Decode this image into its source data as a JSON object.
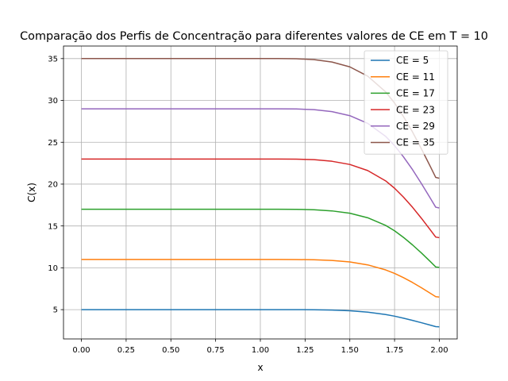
{
  "chart_data": {
    "type": "line",
    "title": "Comparação dos Perfis de Concentração para diferentes valores de CE em T = 10",
    "xlabel": "x",
    "ylabel": "C(x)",
    "xlim": [
      -0.1,
      2.1
    ],
    "ylim": [
      1.5,
      36.5
    ],
    "xticks": [
      0.0,
      0.25,
      0.5,
      0.75,
      1.0,
      1.25,
      1.5,
      1.75,
      2.0
    ],
    "xtick_labels": [
      "0.00",
      "0.25",
      "0.50",
      "0.75",
      "1.00",
      "1.25",
      "1.50",
      "1.75",
      "2.00"
    ],
    "yticks": [
      5,
      10,
      15,
      20,
      25,
      30,
      35
    ],
    "ytick_labels": [
      "5",
      "10",
      "15",
      "20",
      "25",
      "30",
      "35"
    ],
    "grid": true,
    "legend_position": "top-right",
    "x": [
      0.0,
      0.25,
      0.5,
      0.75,
      1.0,
      1.1,
      1.2,
      1.3,
      1.4,
      1.5,
      1.6,
      1.7,
      1.75,
      1.8,
      1.85,
      1.9,
      1.95,
      1.98,
      2.0
    ],
    "series": [
      {
        "name": "CE = 5",
        "color": "#1f77b4",
        "values": [
          5.0,
          5.0,
          5.0,
          5.0,
          5.0,
          5.0,
          5.0,
          4.99,
          4.95,
          4.87,
          4.7,
          4.42,
          4.22,
          3.98,
          3.72,
          3.44,
          3.15,
          2.97,
          2.95
        ]
      },
      {
        "name": "CE = 11",
        "color": "#ff7f0e",
        "values": [
          11.0,
          11.0,
          11.0,
          11.0,
          11.0,
          11.0,
          10.99,
          10.96,
          10.88,
          10.7,
          10.35,
          9.75,
          9.33,
          8.82,
          8.25,
          7.62,
          6.95,
          6.55,
          6.5
        ]
      },
      {
        "name": "CE = 17",
        "color": "#2ca02c",
        "values": [
          17.0,
          17.0,
          17.0,
          17.0,
          17.0,
          17.0,
          16.99,
          16.94,
          16.8,
          16.52,
          15.98,
          15.07,
          14.42,
          13.63,
          12.74,
          11.77,
          10.74,
          10.1,
          10.05
        ]
      },
      {
        "name": "CE = 23",
        "color": "#d62728",
        "values": [
          23.0,
          23.0,
          23.0,
          23.0,
          23.0,
          23.0,
          22.98,
          22.92,
          22.73,
          22.35,
          21.62,
          20.39,
          19.51,
          18.44,
          17.24,
          15.92,
          14.52,
          13.67,
          13.6
        ]
      },
      {
        "name": "CE = 29",
        "color": "#9467bd",
        "values": [
          29.0,
          29.0,
          29.0,
          29.0,
          29.0,
          29.0,
          28.98,
          28.9,
          28.66,
          28.18,
          27.26,
          25.71,
          24.6,
          23.25,
          21.74,
          20.07,
          18.31,
          17.24,
          17.15
        ]
      },
      {
        "name": "CE = 35",
        "color": "#8c564b",
        "values": [
          35.0,
          35.0,
          35.0,
          35.0,
          35.0,
          35.0,
          34.98,
          34.88,
          34.59,
          34.01,
          32.9,
          31.03,
          29.69,
          28.06,
          26.24,
          24.22,
          22.1,
          20.8,
          20.7
        ]
      }
    ]
  }
}
